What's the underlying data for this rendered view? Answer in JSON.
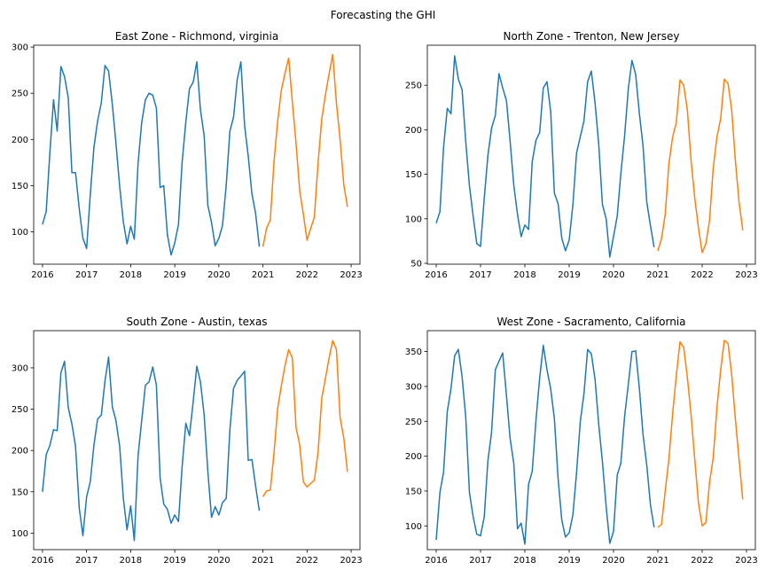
{
  "figure": {
    "title": "Forecasting the GHI"
  },
  "colors": {
    "history": "#1f77b4",
    "forecast": "#ff7f0e",
    "axis": "#000000",
    "background": "#ffffff"
  },
  "chart_data": [
    {
      "type": "line",
      "title": "East Zone - Richmond, virginia",
      "xlabel": "",
      "ylabel": "",
      "xlim": [
        2015.8,
        2023.2
      ],
      "ylim": [
        65,
        302
      ],
      "xticks": [
        2016,
        2017,
        2018,
        2019,
        2020,
        2021,
        2022,
        2023
      ],
      "yticks": [
        100,
        150,
        200,
        250,
        300
      ],
      "grid": false,
      "legend": "none",
      "series": [
        {
          "start": "2016-01",
          "values": [
            108,
            122,
            185,
            243,
            209,
            279,
            268,
            245,
            164,
            164,
            125,
            93,
            82,
            140,
            192,
            220,
            240,
            280,
            274,
            238,
            196,
            149,
            111,
            87,
            106,
            92,
            174,
            218,
            243,
            250,
            248,
            234,
            148,
            150,
            97,
            75,
            88,
            108,
            175,
            219,
            255,
            262,
            284,
            232,
            204,
            129,
            110,
            85,
            93,
            107,
            151,
            209,
            224,
            265,
            284,
            215,
            182,
            141,
            120,
            84
          ]
        },
        {
          "start": "2021-01",
          "values": [
            84,
            104,
            113,
            175,
            220,
            253,
            272,
            288,
            241,
            196,
            145,
            119,
            91,
            104,
            116,
            175,
            222,
            248,
            271,
            292,
            239,
            200,
            151,
            127
          ]
        }
      ]
    },
    {
      "type": "line",
      "title": "North Zone - Trenton, New Jersey",
      "xlabel": "",
      "ylabel": "",
      "xlim": [
        2015.8,
        2023.2
      ],
      "ylim": [
        49,
        295
      ],
      "xticks": [
        2016,
        2017,
        2018,
        2019,
        2020,
        2021,
        2022,
        2023
      ],
      "yticks": [
        50,
        100,
        150,
        200,
        250
      ],
      "grid": false,
      "legend": "none",
      "series": [
        {
          "start": "2016-01",
          "values": [
            95,
            108,
            180,
            224,
            218,
            283,
            257,
            245,
            187,
            137,
            103,
            72,
            69,
            123,
            171,
            202,
            216,
            263,
            247,
            233,
            188,
            138,
            105,
            80,
            93,
            88,
            164,
            188,
            197,
            247,
            254,
            220,
            129,
            117,
            78,
            64,
            76,
            116,
            174,
            192,
            210,
            254,
            266,
            230,
            184,
            116,
            100,
            57,
            80,
            103,
            151,
            193,
            246,
            278,
            262,
            218,
            182,
            119,
            92,
            68
          ]
        },
        {
          "start": "2021-01",
          "values": [
            64,
            78,
            105,
            162,
            192,
            208,
            256,
            250,
            222,
            165,
            123,
            90,
            62,
            72,
            98,
            157,
            192,
            212,
            257,
            252,
            222,
            165,
            118,
            87
          ]
        }
      ]
    },
    {
      "type": "line",
      "title": "South Zone - Austin, texas",
      "xlabel": "",
      "ylabel": "",
      "xlim": [
        2015.8,
        2023.2
      ],
      "ylim": [
        80,
        345
      ],
      "xticks": [
        2016,
        2017,
        2018,
        2019,
        2020,
        2021,
        2022,
        2023
      ],
      "yticks": [
        100,
        150,
        200,
        250,
        300
      ],
      "grid": false,
      "legend": "none",
      "series": [
        {
          "start": "2016-01",
          "values": [
            150,
            195,
            206,
            225,
            224,
            294,
            308,
            252,
            232,
            205,
            130,
            97,
            144,
            162,
            207,
            238,
            243,
            284,
            313,
            253,
            236,
            205,
            142,
            104,
            133,
            91,
            193,
            236,
            279,
            283,
            301,
            279,
            167,
            135,
            129,
            112,
            122,
            114,
            180,
            233,
            218,
            259,
            302,
            283,
            243,
            175,
            119,
            132,
            122,
            137,
            142,
            225,
            275,
            285,
            290,
            296,
            188,
            189,
            157,
            127
          ]
        },
        {
          "start": "2021-01",
          "values": [
            144,
            151,
            152,
            196,
            251,
            278,
            303,
            322,
            312,
            228,
            207,
            162,
            156,
            160,
            164,
            198,
            263,
            287,
            312,
            333,
            322,
            240,
            215,
            174
          ]
        }
      ]
    },
    {
      "type": "line",
      "title": "West Zone - Sacramento, California",
      "xlabel": "",
      "ylabel": "",
      "xlim": [
        2015.8,
        2023.2
      ],
      "ylim": [
        66,
        380
      ],
      "xticks": [
        2016,
        2017,
        2018,
        2019,
        2020,
        2021,
        2022,
        2023
      ],
      "yticks": [
        100,
        150,
        200,
        250,
        300,
        350
      ],
      "grid": false,
      "legend": "none",
      "series": [
        {
          "start": "2016-01",
          "values": [
            80,
            148,
            177,
            264,
            297,
            344,
            353,
            314,
            257,
            148,
            113,
            88,
            86,
            113,
            193,
            235,
            324,
            336,
            348,
            288,
            226,
            190,
            96,
            104,
            74,
            160,
            178,
            251,
            312,
            359,
            324,
            296,
            254,
            168,
            108,
            84,
            90,
            116,
            176,
            249,
            290,
            353,
            347,
            310,
            246,
            192,
            128,
            75,
            92,
            173,
            190,
            257,
            303,
            350,
            351,
            297,
            231,
            187,
            130,
            98
          ]
        },
        {
          "start": "2021-01",
          "values": [
            98,
            102,
            150,
            196,
            261,
            315,
            364,
            356,
            313,
            259,
            195,
            133,
            100,
            105,
            162,
            198,
            270,
            323,
            366,
            362,
            317,
            253,
            194,
            138
          ]
        }
      ]
    }
  ]
}
